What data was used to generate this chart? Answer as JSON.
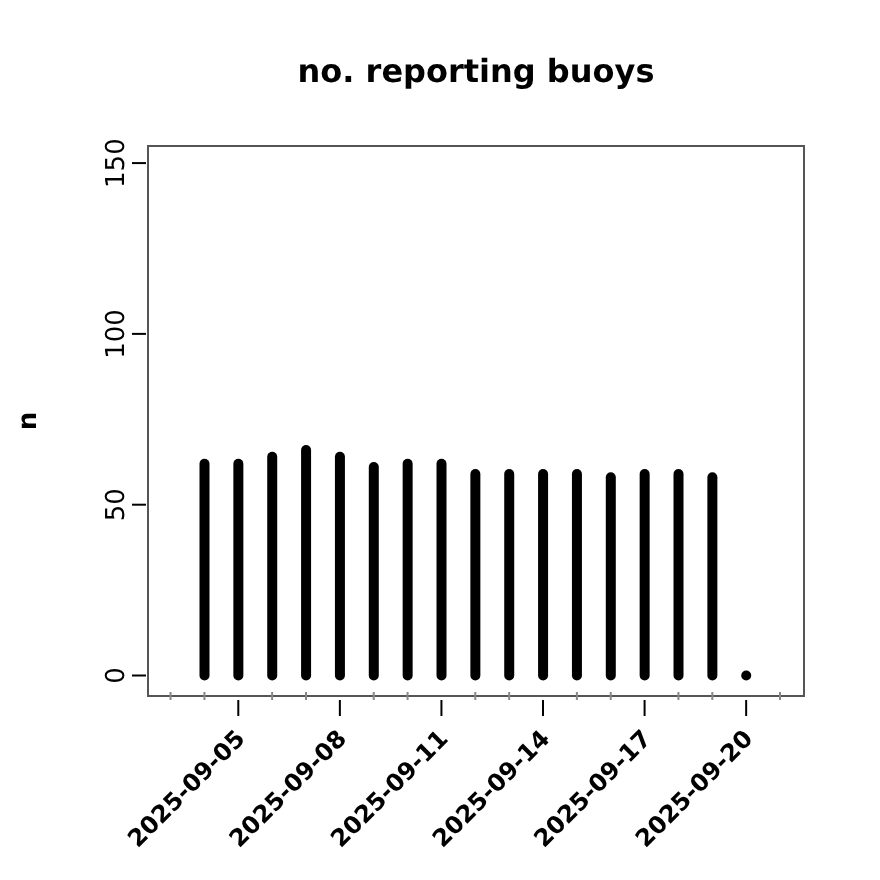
{
  "chart_data": {
    "type": "bar",
    "title": "no. reporting buoys",
    "ylabel": "n",
    "x": [
      "2025-09-04",
      "2025-09-05",
      "2025-09-06",
      "2025-09-07",
      "2025-09-08",
      "2025-09-09",
      "2025-09-10",
      "2025-09-11",
      "2025-09-12",
      "2025-09-13",
      "2025-09-14",
      "2025-09-15",
      "2025-09-16",
      "2025-09-17",
      "2025-09-18",
      "2025-09-19",
      "2025-09-20"
    ],
    "values": [
      62,
      62,
      64,
      66,
      64,
      61,
      62,
      62,
      59,
      59,
      59,
      59,
      58,
      59,
      59,
      58,
      0
    ],
    "color": "#000000",
    "xlim": [
      "2025-09-02T08:00",
      "2025-09-21T17:00"
    ],
    "xticks": [
      {
        "value": "2025-09-03",
        "label": null
      },
      {
        "value": "2025-09-04",
        "label": null
      },
      {
        "value": "2025-09-05",
        "label": "2025-09-05"
      },
      {
        "value": "2025-09-06",
        "label": null
      },
      {
        "value": "2025-09-07",
        "label": null
      },
      {
        "value": "2025-09-08",
        "label": "2025-09-08"
      },
      {
        "value": "2025-09-09",
        "label": null
      },
      {
        "value": "2025-09-10",
        "label": null
      },
      {
        "value": "2025-09-11",
        "label": "2025-09-11"
      },
      {
        "value": "2025-09-12",
        "label": null
      },
      {
        "value": "2025-09-13",
        "label": null
      },
      {
        "value": "2025-09-14",
        "label": "2025-09-14"
      },
      {
        "value": "2025-09-15",
        "label": null
      },
      {
        "value": "2025-09-16",
        "label": null
      },
      {
        "value": "2025-09-17",
        "label": "2025-09-17"
      },
      {
        "value": "2025-09-18",
        "label": null
      },
      {
        "value": "2025-09-19",
        "label": null
      },
      {
        "value": "2025-09-20",
        "label": "2025-09-20"
      },
      {
        "value": "2025-09-21",
        "label": null
      }
    ],
    "ylim": [
      -6,
      155
    ],
    "yticks": [
      0,
      50,
      100,
      150
    ]
  }
}
